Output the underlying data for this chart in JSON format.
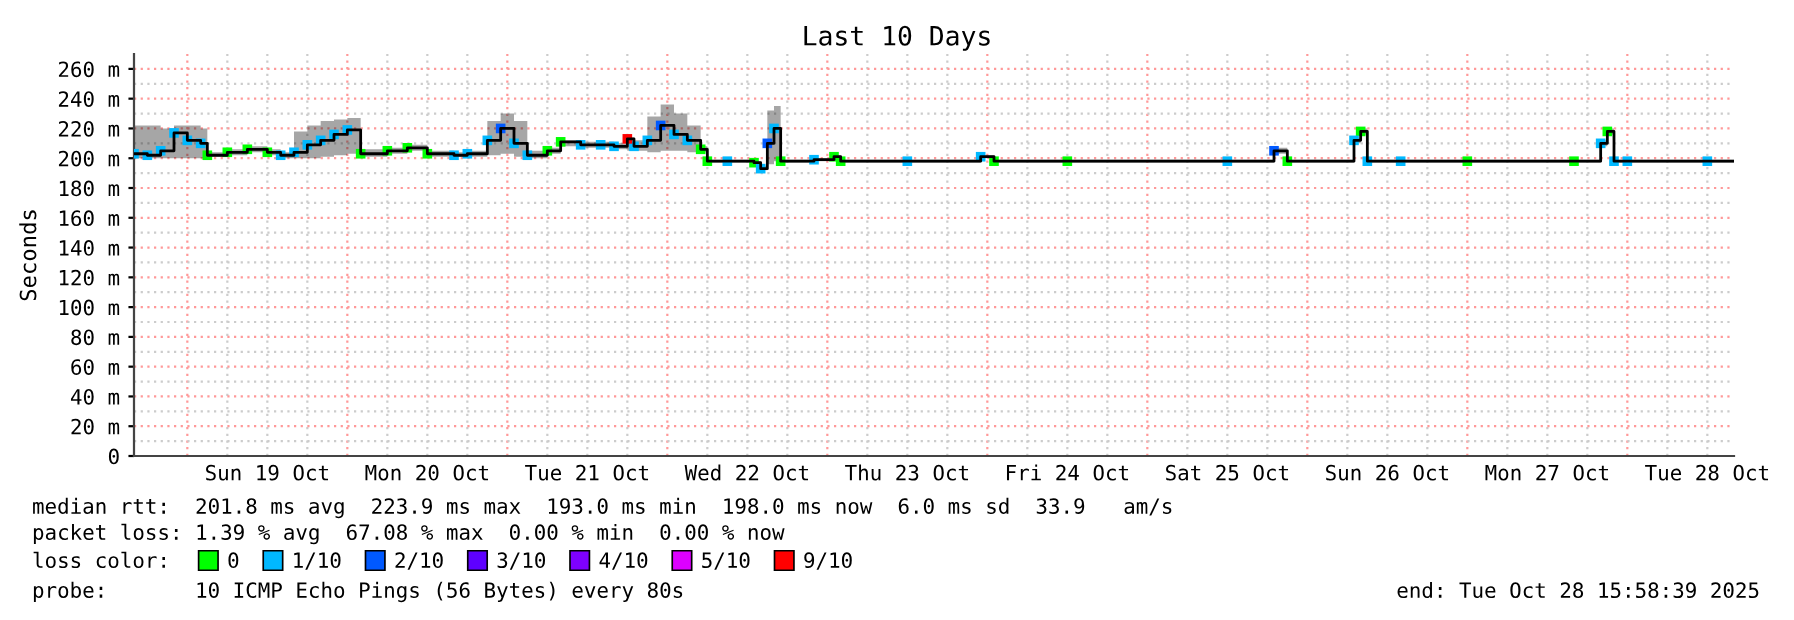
{
  "chart_data": {
    "type": "step",
    "marker": "square",
    "title": "Last 10 Days",
    "ylabel": "Seconds",
    "x": [
      "2025-10-18T16:00",
      "2025-10-18T18:00",
      "2025-10-18T20:00",
      "2025-10-18T22:00",
      "2025-10-19T00:00",
      "2025-10-19T02:00",
      "2025-10-19T03:00",
      "2025-10-19T06:00",
      "2025-10-19T09:00",
      "2025-10-19T12:00",
      "2025-10-19T14:00",
      "2025-10-19T16:00",
      "2025-10-19T18:00",
      "2025-10-19T20:00",
      "2025-10-19T22:00",
      "2025-10-20T00:00",
      "2025-10-20T02:00",
      "2025-10-20T06:00",
      "2025-10-20T09:00",
      "2025-10-20T12:00",
      "2025-10-20T16:00",
      "2025-10-20T18:00",
      "2025-10-20T21:00",
      "2025-10-20T23:00",
      "2025-10-21T01:00",
      "2025-10-21T03:00",
      "2025-10-21T06:00",
      "2025-10-21T08:00",
      "2025-10-21T11:00",
      "2025-10-21T14:00",
      "2025-10-21T16:00",
      "2025-10-21T18:00",
      "2025-10-21T19:00",
      "2025-10-21T21:00",
      "2025-10-21T23:00",
      "2025-10-22T01:00",
      "2025-10-22T03:00",
      "2025-10-22T05:00",
      "2025-10-22T06:00",
      "2025-10-22T09:00",
      "2025-10-22T13:00",
      "2025-10-22T14:00",
      "2025-10-22T15:00",
      "2025-10-22T16:00",
      "2025-10-22T17:00",
      "2025-10-22T22:00",
      "2025-10-23T01:00",
      "2025-10-23T02:00",
      "2025-10-23T12:00",
      "2025-10-23T23:00",
      "2025-10-24T01:00",
      "2025-10-24T12:00",
      "2025-10-25T12:00",
      "2025-10-25T19:00",
      "2025-10-25T21:00",
      "2025-10-26T07:00",
      "2025-10-26T08:00",
      "2025-10-26T09:00",
      "2025-10-26T14:00",
      "2025-10-27T00:00",
      "2025-10-27T16:00",
      "2025-10-27T20:00",
      "2025-10-27T21:00",
      "2025-10-27T22:00",
      "2025-10-28T00:00",
      "2025-10-28T12:00",
      "2025-10-28T16:00"
    ],
    "series": [
      {
        "color": "#000000",
        "marker": "none",
        "values": [
          203,
          202,
          205,
          217,
          212,
          210,
          202,
          204,
          206,
          204,
          202,
          204,
          209,
          212,
          216,
          219,
          203,
          205,
          207,
          203,
          202,
          203,
          212,
          220,
          210,
          202,
          205,
          211,
          209,
          209,
          208,
          213,
          208,
          212,
          222,
          216,
          212,
          206,
          198,
          198,
          197,
          193,
          210,
          220,
          198,
          199,
          201,
          198,
          198,
          201,
          198,
          198,
          198,
          205,
          198,
          212,
          218,
          198,
          198,
          198,
          198,
          210,
          218,
          198,
          198,
          198,
          198
        ],
        "lower": [
          200,
          200,
          200,
          200,
          200,
          200,
          201,
          202,
          204,
          202,
          200,
          200,
          200,
          201,
          202,
          203,
          201,
          203,
          205,
          201,
          201,
          201,
          202,
          203,
          201,
          200,
          203,
          208,
          207,
          207,
          206,
          205,
          205,
          204,
          205,
          205,
          204,
          204,
          197,
          197,
          196,
          192,
          196,
          198,
          197,
          198,
          200,
          197,
          197,
          200,
          197,
          197,
          197,
          203,
          197,
          210,
          216,
          197,
          197,
          197,
          197,
          208,
          216,
          197,
          197,
          197,
          197
        ],
        "upper": [
          222,
          222,
          220,
          222,
          222,
          220,
          204,
          206,
          208,
          206,
          204,
          218,
          222,
          225,
          226,
          227,
          206,
          207,
          209,
          205,
          204,
          205,
          225,
          230,
          225,
          205,
          207,
          212,
          211,
          211,
          210,
          214,
          212,
          228,
          236,
          230,
          222,
          208,
          199,
          199,
          198,
          195,
          232,
          235,
          199,
          200,
          202,
          199,
          199,
          202,
          199,
          199,
          199,
          207,
          199,
          214,
          220,
          199,
          199,
          199,
          199,
          212,
          220,
          199,
          199,
          199,
          199
        ]
      },
      {
        "type": "scatter",
        "name": "0",
        "color": "#00ff00",
        "values": [
          null,
          null,
          null,
          null,
          null,
          null,
          202,
          204,
          206,
          204,
          null,
          null,
          null,
          null,
          null,
          null,
          203,
          205,
          207,
          203,
          null,
          null,
          null,
          null,
          null,
          null,
          205,
          211,
          null,
          null,
          null,
          null,
          null,
          null,
          null,
          null,
          null,
          206,
          198,
          null,
          197,
          null,
          null,
          null,
          198,
          null,
          201,
          198,
          null,
          null,
          198,
          198,
          null,
          null,
          198,
          null,
          218,
          null,
          null,
          198,
          198,
          null,
          218,
          null,
          null,
          null,
          null
        ]
      },
      {
        "type": "scatter",
        "name": "1/10",
        "color": "#00b8ff",
        "values": [
          203,
          202,
          205,
          217,
          212,
          210,
          null,
          null,
          null,
          null,
          202,
          204,
          209,
          212,
          216,
          219,
          null,
          null,
          null,
          null,
          202,
          203,
          212,
          null,
          210,
          202,
          null,
          null,
          209,
          209,
          208,
          null,
          208,
          212,
          null,
          216,
          212,
          null,
          null,
          198,
          null,
          193,
          null,
          220,
          null,
          199,
          null,
          null,
          198,
          201,
          null,
          null,
          198,
          null,
          null,
          212,
          null,
          198,
          198,
          null,
          null,
          210,
          null,
          198,
          198,
          198,
          null
        ]
      },
      {
        "type": "scatter",
        "name": "2/10",
        "color": "#0059ff",
        "values": [
          null,
          null,
          null,
          null,
          null,
          null,
          null,
          null,
          null,
          null,
          null,
          null,
          null,
          null,
          null,
          null,
          null,
          null,
          null,
          null,
          null,
          null,
          null,
          220,
          null,
          null,
          null,
          null,
          null,
          null,
          null,
          null,
          null,
          null,
          222,
          null,
          null,
          null,
          null,
          null,
          null,
          null,
          210,
          null,
          null,
          null,
          null,
          null,
          null,
          null,
          null,
          null,
          null,
          205,
          null,
          null,
          null,
          null,
          null,
          null,
          null,
          null,
          null,
          null,
          null,
          null,
          null
        ]
      },
      {
        "type": "scatter",
        "name": "3/10",
        "color": "#5e00ff",
        "values": [
          null,
          null,
          null,
          null,
          null,
          null,
          null,
          null,
          null,
          null,
          null,
          null,
          null,
          null,
          null,
          null,
          null,
          null,
          null,
          null,
          null,
          null,
          null,
          null,
          null,
          null,
          null,
          null,
          null,
          null,
          null,
          null,
          null,
          null,
          null,
          null,
          null,
          null,
          null,
          null,
          null,
          null,
          null,
          null,
          null,
          null,
          null,
          null,
          null,
          null,
          null,
          null,
          null,
          null,
          null,
          null,
          null,
          null,
          null,
          null,
          null,
          null,
          null,
          null,
          null,
          null,
          null
        ]
      },
      {
        "type": "scatter",
        "name": "4/10",
        "color": "#7e00ff",
        "values": [
          null,
          null,
          null,
          null,
          null,
          null,
          null,
          null,
          null,
          null,
          null,
          null,
          null,
          null,
          null,
          null,
          null,
          null,
          null,
          null,
          null,
          null,
          null,
          null,
          null,
          null,
          null,
          null,
          null,
          null,
          null,
          null,
          null,
          null,
          null,
          null,
          null,
          null,
          null,
          null,
          null,
          null,
          null,
          null,
          null,
          null,
          null,
          null,
          null,
          null,
          null,
          null,
          null,
          null,
          null,
          null,
          null,
          null,
          null,
          null,
          null,
          null,
          null,
          null,
          null,
          null,
          null
        ]
      },
      {
        "type": "scatter",
        "name": "5/10",
        "color": "#dd00ff",
        "values": [
          null,
          null,
          null,
          null,
          null,
          null,
          null,
          null,
          null,
          null,
          null,
          null,
          null,
          null,
          null,
          null,
          null,
          null,
          null,
          null,
          null,
          null,
          null,
          null,
          null,
          null,
          null,
          null,
          null,
          null,
          null,
          null,
          null,
          null,
          null,
          null,
          null,
          null,
          null,
          null,
          null,
          null,
          null,
          null,
          null,
          null,
          null,
          null,
          null,
          null,
          null,
          null,
          null,
          null,
          null,
          null,
          null,
          null,
          null,
          null,
          null,
          null,
          null,
          null,
          null,
          null,
          null
        ]
      },
      {
        "type": "scatter",
        "name": "9/10",
        "color": "#ff0000",
        "values": [
          null,
          null,
          null,
          null,
          null,
          null,
          null,
          null,
          null,
          null,
          null,
          null,
          null,
          null,
          null,
          null,
          null,
          null,
          null,
          null,
          null,
          null,
          null,
          null,
          null,
          null,
          null,
          null,
          null,
          null,
          null,
          213,
          null,
          null,
          null,
          null,
          null,
          null,
          null,
          null,
          null,
          null,
          null,
          null,
          null,
          null,
          null,
          null,
          null,
          null,
          null,
          null,
          null,
          null,
          null,
          null,
          null,
          null,
          null,
          null,
          null,
          null,
          null,
          null,
          null,
          null,
          null
        ]
      }
    ],
    "xlim": [
      "2025-10-18T16:00",
      "2025-10-28T16:00"
    ],
    "xticks": [
      {
        "value": "2025-10-19T00:00",
        "label": null
      },
      {
        "value": "2025-10-19T12:00",
        "label": "Sun 19 Oct"
      },
      {
        "value": "2025-10-20T00:00",
        "label": null
      },
      {
        "value": "2025-10-20T12:00",
        "label": "Mon 20 Oct"
      },
      {
        "value": "2025-10-21T00:00",
        "label": null
      },
      {
        "value": "2025-10-21T12:00",
        "label": "Tue 21 Oct"
      },
      {
        "value": "2025-10-22T00:00",
        "label": null
      },
      {
        "value": "2025-10-22T12:00",
        "label": "Wed 22 Oct"
      },
      {
        "value": "2025-10-23T00:00",
        "label": null
      },
      {
        "value": "2025-10-23T12:00",
        "label": "Thu 23 Oct"
      },
      {
        "value": "2025-10-24T00:00",
        "label": null
      },
      {
        "value": "2025-10-24T12:00",
        "label": "Fri 24 Oct"
      },
      {
        "value": "2025-10-25T00:00",
        "label": null
      },
      {
        "value": "2025-10-25T12:00",
        "label": "Sat 25 Oct"
      },
      {
        "value": "2025-10-26T00:00",
        "label": null
      },
      {
        "value": "2025-10-26T12:00",
        "label": "Sun 26 Oct"
      },
      {
        "value": "2025-10-27T00:00",
        "label": null
      },
      {
        "value": "2025-10-27T12:00",
        "label": "Mon 27 Oct"
      },
      {
        "value": "2025-10-28T00:00",
        "label": null
      },
      {
        "value": "2025-10-28T12:00",
        "label": "Tue 28 Oct"
      }
    ],
    "ylim": [
      0,
      270
    ],
    "yticks": [
      {
        "value": 0,
        "label": "0"
      },
      {
        "value": 20,
        "label": "20 m"
      },
      {
        "value": 40,
        "label": "40 m"
      },
      {
        "value": 60,
        "label": "60 m"
      },
      {
        "value": 80,
        "label": "80 m"
      },
      {
        "value": 100,
        "label": "100 m"
      },
      {
        "value": 120,
        "label": "120 m"
      },
      {
        "value": 140,
        "label": "140 m"
      },
      {
        "value": 160,
        "label": "160 m"
      },
      {
        "value": 180,
        "label": "180 m"
      },
      {
        "value": 200,
        "label": "200 m"
      },
      {
        "value": 220,
        "label": "220 m"
      },
      {
        "value": 240,
        "label": "240 m"
      },
      {
        "value": 260,
        "label": "260 m"
      }
    ],
    "grid": true,
    "legend": "bottom",
    "legend_title": "loss color:",
    "annotations": [
      "median rtt:  201.8 ms avg  223.9 ms max  193.0 ms min  198.0 ms now  6.0 ms sd  33.9   am/s",
      "packet loss: 1.39 % avg  67.08 % max  0.00 % min  0.00 % now",
      "probe:       10 ICMP Echo Pings (56 Bytes) every 80s",
      "end: Tue Oct 28 15:58:39 2025"
    ]
  }
}
